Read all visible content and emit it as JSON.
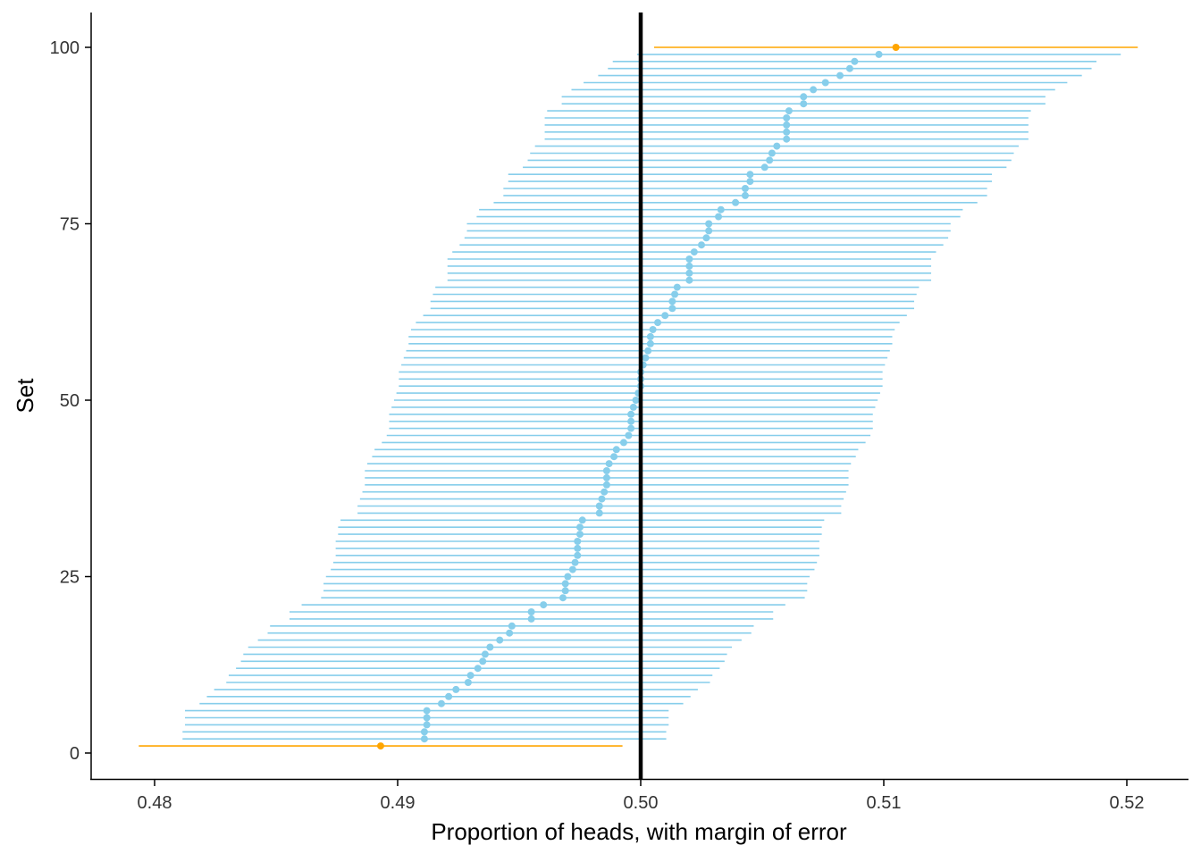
{
  "chart_data": {
    "type": "errorbar",
    "title": "",
    "xlabel": "Proportion of heads, with margin of error",
    "ylabel": "Set",
    "xlim": [
      0.4773,
      0.5225
    ],
    "ylim": [
      -3.7,
      105
    ],
    "x_ticks": [
      0.48,
      0.49,
      0.5,
      0.51,
      0.52
    ],
    "x_tick_labels": [
      "0.48",
      "0.49",
      "0.50",
      "0.51",
      "0.52"
    ],
    "y_ticks": [
      0,
      25,
      50,
      75,
      100
    ],
    "y_tick_labels": [
      "0",
      "25",
      "50",
      "75",
      "100"
    ],
    "reference_line": 0.5,
    "margin_of_error": 0.00995,
    "colors": {
      "covers": "#87CEEB",
      "misses": "#FFA500",
      "reference": "#000000"
    },
    "grid": false,
    "sets": [
      1,
      2,
      3,
      4,
      5,
      6,
      7,
      8,
      9,
      10,
      11,
      12,
      13,
      14,
      15,
      16,
      17,
      18,
      19,
      20,
      21,
      22,
      23,
      24,
      25,
      26,
      27,
      28,
      29,
      30,
      31,
      32,
      33,
      34,
      35,
      36,
      37,
      38,
      39,
      40,
      41,
      42,
      43,
      44,
      45,
      46,
      47,
      48,
      49,
      50,
      51,
      52,
      53,
      54,
      55,
      56,
      57,
      58,
      59,
      60,
      61,
      62,
      63,
      64,
      65,
      66,
      67,
      68,
      69,
      70,
      71,
      72,
      73,
      74,
      75,
      76,
      77,
      78,
      79,
      80,
      81,
      82,
      83,
      84,
      85,
      86,
      87,
      88,
      89,
      90,
      91,
      92,
      93,
      94,
      95,
      96,
      97,
      98,
      99,
      100
    ],
    "proportions": [
      0.4893,
      0.4911,
      0.4911,
      0.4912,
      0.4912,
      0.4912,
      0.4918,
      0.4921,
      0.4924,
      0.4929,
      0.493,
      0.4933,
      0.4935,
      0.4936,
      0.4938,
      0.4942,
      0.4946,
      0.4947,
      0.4955,
      0.4955,
      0.496,
      0.4968,
      0.4969,
      0.4969,
      0.497,
      0.4972,
      0.4973,
      0.4974,
      0.4974,
      0.4974,
      0.4975,
      0.4975,
      0.4976,
      0.4983,
      0.4983,
      0.4984,
      0.4985,
      0.4986,
      0.4986,
      0.4986,
      0.4987,
      0.4989,
      0.499,
      0.4993,
      0.4995,
      0.4996,
      0.4996,
      0.4996,
      0.4997,
      0.4998,
      0.4999,
      0.5,
      0.5,
      0.5,
      0.5001,
      0.5002,
      0.5003,
      0.5004,
      0.5004,
      0.5005,
      0.5007,
      0.501,
      0.5013,
      0.5013,
      0.5014,
      0.5015,
      0.502,
      0.502,
      0.502,
      0.502,
      0.5022,
      0.5025,
      0.5027,
      0.5028,
      0.5028,
      0.5032,
      0.5033,
      0.5039,
      0.5043,
      0.5043,
      0.5045,
      0.5045,
      0.5051,
      0.5053,
      0.5054,
      0.5056,
      0.506,
      0.506,
      0.506,
      0.506,
      0.5061,
      0.5067,
      0.5067,
      0.5071,
      0.5076,
      0.5082,
      0.5086,
      0.5088,
      0.5098,
      0.5105
    ]
  }
}
